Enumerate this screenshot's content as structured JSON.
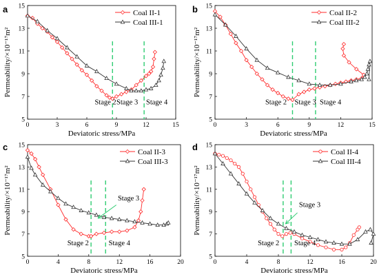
{
  "colors": {
    "coal2": "#ff2a2a",
    "coal3": "#333333",
    "stage": "#2ecc71"
  },
  "chart_data": [
    {
      "type": "line",
      "panel_letter": "a",
      "xlabel": "Deviatoric stress/MPa",
      "ylabel": "Permeability/×10⁻¹⁷m²",
      "xlim": [
        0,
        15
      ],
      "ylim": [
        5,
        15
      ],
      "xticks": [
        0,
        3,
        6,
        9,
        12,
        15
      ],
      "yticks": [
        5,
        7,
        9,
        11,
        13,
        15
      ],
      "xtick_labels": [
        "0",
        "3",
        "6",
        "9",
        "12",
        "15"
      ],
      "ytick_labels": [
        "5",
        "7",
        "9",
        "11",
        "13",
        "15"
      ],
      "legend": "top-right",
      "stage_lines": [
        8.6,
        11.8
      ],
      "annotations": [
        {
          "text": "Stage 2",
          "x": 6.8,
          "y": 6.3
        },
        {
          "text": "Stage 3",
          "x": 9.0,
          "y": 6.3
        },
        {
          "text": "Stage 4",
          "x": 12.0,
          "y": 6.3
        }
      ],
      "series": [
        {
          "name": "Coal II-1",
          "color_key": "coal2",
          "marker": "diamond",
          "x": [
            0,
            0.5,
            1,
            1.5,
            2,
            2.5,
            3,
            3.5,
            4,
            4.5,
            5,
            5.5,
            6,
            6.5,
            7,
            7.5,
            8,
            8.3,
            8.6,
            9,
            9.5,
            10,
            10.5,
            11,
            11.5,
            12,
            12.3,
            12.5,
            12.7,
            12.8,
            12.9
          ],
          "y": [
            14.1,
            13.9,
            13.4,
            13.0,
            12.7,
            12.2,
            11.8,
            11.3,
            10.8,
            10.3,
            9.8,
            9.3,
            8.9,
            8.4,
            7.9,
            7.5,
            7.1,
            6.9,
            6.8,
            7.0,
            7.2,
            7.4,
            7.6,
            8.0,
            8.4,
            8.8,
            9.0,
            9.2,
            9.6,
            10.3,
            10.9
          ]
        },
        {
          "name": "Coal III-1",
          "color_key": "coal3",
          "marker": "triangle",
          "x": [
            0,
            1,
            2,
            3,
            4,
            5,
            6,
            7,
            8,
            9,
            10,
            10.5,
            11,
            11.5,
            12,
            12.5,
            13,
            13.3,
            13.5,
            13.7,
            13.8
          ],
          "y": [
            14.1,
            13.6,
            12.8,
            12.1,
            11.3,
            10.5,
            9.7,
            9.2,
            8.6,
            8.1,
            7.7,
            7.5,
            7.5,
            7.5,
            7.6,
            7.7,
            8.0,
            8.4,
            8.9,
            9.5,
            10.1
          ]
        }
      ]
    },
    {
      "type": "line",
      "panel_letter": "b",
      "xlabel": "Deviatoric stress/MPa",
      "ylabel": "Permeability/×10⁻¹⁷m²",
      "xlim": [
        0,
        15
      ],
      "ylim": [
        5,
        15
      ],
      "xticks": [
        0,
        3,
        6,
        9,
        12,
        15
      ],
      "yticks": [
        5,
        7,
        9,
        11,
        13,
        15
      ],
      "xtick_labels": [
        "0",
        "3",
        "6",
        "9",
        "12",
        "15"
      ],
      "ytick_labels": [
        "5",
        "7",
        "9",
        "11",
        "13",
        "15"
      ],
      "legend": "top-right",
      "stage_lines": [
        7.4,
        9.6
      ],
      "annotations": [
        {
          "text": "Stage 2",
          "x": 4.8,
          "y": 6.3
        },
        {
          "text": "Stage 3",
          "x": 7.6,
          "y": 6.3
        },
        {
          "text": "Stage 4",
          "x": 10.0,
          "y": 6.3
        }
      ],
      "series": [
        {
          "name": "Coal II-2",
          "color_key": "coal2",
          "marker": "diamond",
          "x": [
            0,
            0.5,
            1,
            1.5,
            2,
            2.5,
            3,
            3.5,
            4,
            4.5,
            5,
            5.5,
            6,
            6.5,
            7,
            7.4,
            8,
            8.5,
            9,
            9.5,
            10,
            10.5,
            11,
            11.5,
            12,
            12.5,
            13,
            13.5,
            14,
            14.2,
            13.5,
            12.8,
            12.3,
            12.2,
            12.3
          ],
          "y": [
            14.5,
            14.0,
            13.3,
            12.5,
            11.7,
            11.0,
            10.2,
            9.6,
            9.0,
            8.5,
            8.0,
            7.6,
            7.3,
            7.0,
            6.8,
            6.7,
            7.2,
            7.4,
            7.6,
            7.7,
            7.8,
            7.9,
            8.0,
            8.1,
            8.2,
            8.3,
            8.4,
            8.5,
            8.6,
            8.9,
            9.4,
            10.0,
            10.6,
            11.2,
            11.6
          ]
        },
        {
          "name": "Coal III-2",
          "color_key": "coal3",
          "marker": "triangle",
          "x": [
            0,
            1,
            2,
            3,
            4,
            5,
            6,
            7,
            8,
            9,
            10,
            11,
            12,
            13,
            13.5,
            14,
            14.3,
            14.5,
            14.6,
            14.7,
            14.8,
            14.7
          ],
          "y": [
            14.2,
            13.3,
            12.3,
            11.2,
            10.2,
            9.5,
            9.1,
            8.7,
            8.4,
            8.1,
            8.0,
            8.0,
            8.1,
            8.3,
            8.4,
            8.5,
            8.7,
            9.0,
            9.4,
            9.8,
            10.1,
            8.5
          ]
        }
      ]
    },
    {
      "type": "line",
      "panel_letter": "c",
      "xlabel": "Deviatoric stress/MPa",
      "ylabel": "Permeability/×10⁻¹⁷m²",
      "xlim": [
        0,
        20
      ],
      "ylim": [
        5,
        15
      ],
      "xticks": [
        0,
        4,
        8,
        12,
        16,
        20
      ],
      "yticks": [
        5,
        7,
        9,
        11,
        13,
        15
      ],
      "xtick_labels": [
        "0",
        "4",
        "8",
        "12",
        "16",
        "20"
      ],
      "ytick_labels": [
        "5",
        "7",
        "9",
        "11",
        "13",
        "15"
      ],
      "legend": "top-right",
      "stage_lines": [
        8.3,
        10.2
      ],
      "annotations": [
        {
          "text": "Stage 2",
          "x": 5.2,
          "y": 6.0
        },
        {
          "text": "Stage 4",
          "x": 10.6,
          "y": 6.0
        },
        {
          "text": "Stage 3",
          "x": 11.8,
          "y": 10.0
        }
      ],
      "arrows": [
        {
          "from": [
            11.6,
            9.6
          ],
          "to": [
            9.2,
            8.4
          ]
        }
      ],
      "series": [
        {
          "name": "Coal II-3",
          "color_key": "coal2",
          "marker": "diamond",
          "x": [
            0,
            0.5,
            1,
            1.5,
            2,
            3,
            4,
            5,
            6,
            7,
            8,
            8.3,
            9,
            10,
            11,
            12,
            13,
            14,
            14.5,
            14.8,
            15,
            15.2
          ],
          "y": [
            14.5,
            14.2,
            13.7,
            13.0,
            12.3,
            11.0,
            9.6,
            8.3,
            7.4,
            7.0,
            6.8,
            6.8,
            7.0,
            7.1,
            7.2,
            7.2,
            7.3,
            7.6,
            8.2,
            9.0,
            10.0,
            11.0
          ]
        },
        {
          "name": "Coal III-3",
          "color_key": "coal3",
          "marker": "triangle",
          "x": [
            0,
            0.5,
            1,
            2,
            3,
            4,
            5,
            6,
            7,
            8,
            9,
            10,
            11,
            12,
            13,
            14,
            15,
            16,
            17,
            17.8,
            18.2,
            18.4
          ],
          "y": [
            13.9,
            12.9,
            12.3,
            11.4,
            10.8,
            10.2,
            9.7,
            9.4,
            9.1,
            8.9,
            8.7,
            8.5,
            8.4,
            8.3,
            8.2,
            8.1,
            8.0,
            7.9,
            7.8,
            7.8,
            7.9,
            8.0
          ]
        }
      ]
    },
    {
      "type": "line",
      "panel_letter": "d",
      "xlabel": "Deviatoric stress/MPa",
      "ylabel": "Permeability/×10⁻¹⁷m²",
      "xlim": [
        0,
        20
      ],
      "ylim": [
        5,
        15
      ],
      "xticks": [
        0,
        4,
        8,
        12,
        16,
        20
      ],
      "yticks": [
        5,
        7,
        9,
        11,
        13,
        15
      ],
      "xtick_labels": [
        "0",
        "4",
        "8",
        "12",
        "16",
        "20"
      ],
      "ytick_labels": [
        "5",
        "7",
        "9",
        "11",
        "13",
        "15"
      ],
      "legend": "top-right",
      "stage_lines": [
        8.6,
        9.6
      ],
      "annotations": [
        {
          "text": "Stage 2",
          "x": 5.4,
          "y": 6.0
        },
        {
          "text": "Stage 4",
          "x": 10.0,
          "y": 6.0
        },
        {
          "text": "Stage 3",
          "x": 10.6,
          "y": 9.4
        }
      ],
      "arrows": [
        {
          "from": [
            10.4,
            8.9
          ],
          "to": [
            8.9,
            7.9
          ]
        }
      ],
      "series": [
        {
          "name": "Coal II-4",
          "color_key": "coal2",
          "marker": "circle",
          "x": [
            0,
            0.5,
            1,
            1.5,
            2,
            2.5,
            3,
            3.5,
            4,
            4.5,
            5,
            5.5,
            6,
            6.5,
            7,
            7.5,
            8,
            8.5,
            9,
            9.5,
            10,
            11,
            12,
            13,
            14,
            15,
            16,
            16.5,
            17,
            17.5,
            18,
            18.2
          ],
          "y": [
            14.2,
            14.1,
            14.0,
            13.8,
            13.6,
            13.3,
            13.0,
            12.4,
            11.7,
            11.0,
            10.3,
            9.6,
            9.0,
            8.4,
            7.9,
            7.4,
            7.0,
            6.8,
            7.0,
            7.1,
            7.0,
            6.6,
            6.3,
            6.0,
            5.8,
            5.6,
            5.6,
            5.8,
            6.2,
            6.9,
            7.4,
            7.6
          ]
        },
        {
          "name": "Coal III-4",
          "color_key": "coal3",
          "marker": "triangle",
          "x": [
            0,
            1,
            2,
            3,
            4,
            5,
            6,
            7,
            8,
            9,
            10,
            11,
            12,
            13,
            14,
            15,
            16,
            17,
            18,
            19,
            19.6,
            20,
            19.7
          ],
          "y": [
            14.2,
            13.3,
            12.4,
            11.5,
            10.6,
            9.8,
            9.1,
            8.4,
            7.9,
            7.5,
            7.2,
            6.9,
            6.7,
            6.5,
            6.3,
            6.2,
            6.1,
            6.1,
            6.5,
            7.2,
            7.4,
            7.0,
            6.2
          ]
        }
      ]
    }
  ]
}
